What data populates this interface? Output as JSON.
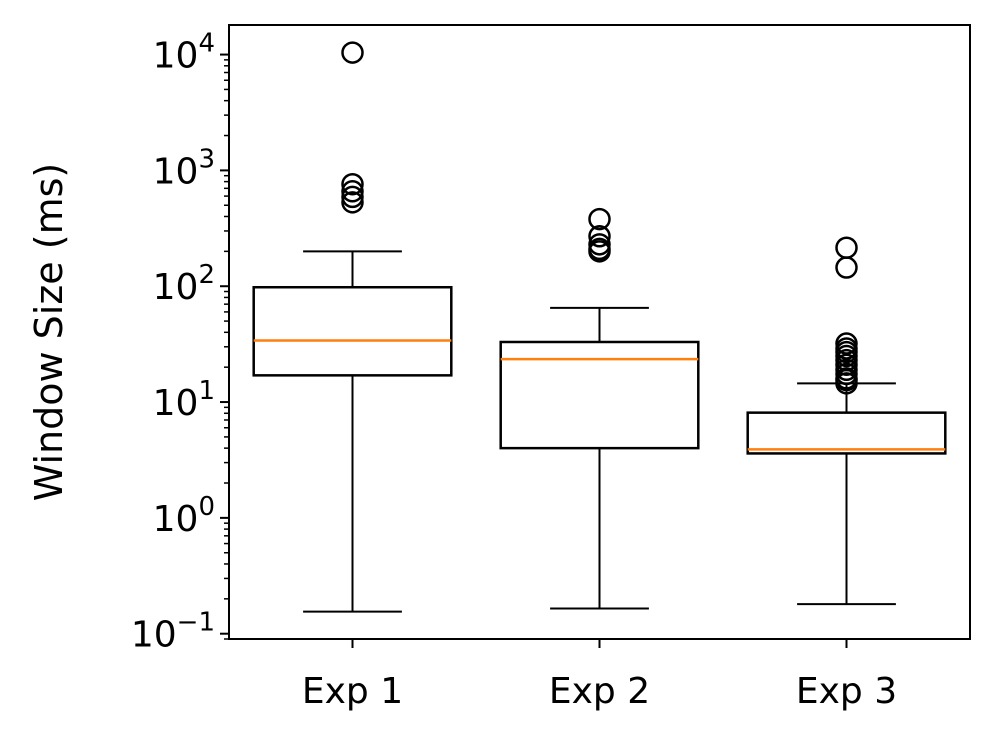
{
  "chart_data": {
    "type": "boxplot",
    "title": "",
    "xlabel": "",
    "ylabel": "Window Size (ms)",
    "yscale": "log",
    "ylim": [
      0.09,
      18000
    ],
    "grid": false,
    "categories": [
      "Exp 1",
      "Exp 2",
      "Exp 3"
    ],
    "boxes": [
      {
        "whisker_low": 0.155,
        "q1": 17,
        "median": 34,
        "q3": 98,
        "whisker_high": 200,
        "outliers": [
          10400,
          760,
          660,
          590,
          530
        ]
      },
      {
        "whisker_low": 0.165,
        "q1": 4.0,
        "median": 23.5,
        "q3": 33,
        "whisker_high": 65,
        "outliers": [
          380,
          270,
          230,
          210,
          200
        ]
      },
      {
        "whisker_low": 0.18,
        "q1": 3.6,
        "median": 3.9,
        "q3": 8.1,
        "whisker_high": 14.5,
        "outliers": [
          215,
          145,
          32,
          29,
          27,
          25,
          23,
          21,
          19,
          17.5,
          16,
          15.5,
          14.5
        ]
      }
    ],
    "yticks": [
      {
        "value": 0.1,
        "base": "10",
        "exp": "−1"
      },
      {
        "value": 1,
        "base": "10",
        "exp": "0"
      },
      {
        "value": 10,
        "base": "10",
        "exp": "1"
      },
      {
        "value": 100,
        "base": "10",
        "exp": "2"
      },
      {
        "value": 1000,
        "base": "10",
        "exp": "3"
      },
      {
        "value": 10000,
        "base": "10",
        "exp": "4"
      }
    ],
    "colors": {
      "box": "#000000",
      "median": "#ff7f0e",
      "outlier": "#000000"
    }
  }
}
